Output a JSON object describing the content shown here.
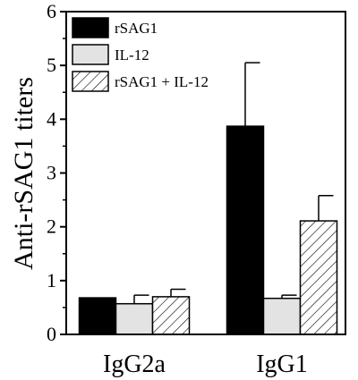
{
  "chart_data": {
    "type": "bar",
    "ylabel": "Anti-rSAG1 titers",
    "ylim": [
      0,
      6
    ],
    "yticks": [
      0,
      1,
      2,
      3,
      4,
      5,
      6
    ],
    "categories": [
      "IgG2a",
      "IgG1"
    ],
    "legend_position": "top-left",
    "series": [
      {
        "name": "rSAG1",
        "values": [
          0.68,
          3.87
        ],
        "errors": [
          0,
          1.18
        ],
        "fill": "#000000",
        "pattern": "solid"
      },
      {
        "name": "IL-12",
        "values": [
          0.57,
          0.67
        ],
        "errors": [
          0.16,
          0.06
        ],
        "fill": "#e3e3e3",
        "pattern": "solid"
      },
      {
        "name": "rSAG1 + IL-12",
        "values": [
          0.7,
          2.11
        ],
        "errors": [
          0.14,
          0.47
        ],
        "fill": "#ffffff",
        "pattern": "diagonal-hatch"
      }
    ]
  }
}
